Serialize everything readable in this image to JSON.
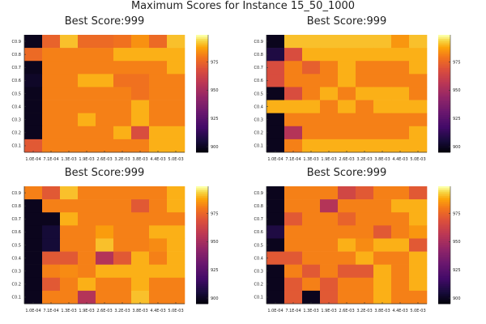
{
  "figure": {
    "suptitle": "Maximum Scores for Instance 15_50_1000"
  },
  "chart_data": {
    "type": "heatmap",
    "rows": [
      "C0.1",
      "C0.2",
      "C0.3",
      "C0.4",
      "C0.5",
      "C0.6",
      "C0.7",
      "C0.8",
      "C0.9"
    ],
    "x_tick_labels": [
      "1.0E-04",
      "7.1E-04",
      "1.3E-03",
      "1.9E-03",
      "2.6E-03",
      "3.2E-03",
      "3.8E-03",
      "4.4E-03",
      "5.0E-03"
    ],
    "colorbar": {
      "min": 895,
      "max": 999,
      "ticks": [
        900,
        925,
        950,
        975
      ],
      "colormap": "inferno"
    },
    "panels": [
      {
        "title": "Best Score:999",
        "grid_top_to_bottom": [
          [
            900,
            975,
            992,
            977,
            977,
            979,
            985,
            977,
            992
          ],
          [
            977,
            982,
            982,
            982,
            982,
            990,
            990,
            990,
            990
          ],
          [
            900,
            982,
            982,
            982,
            982,
            982,
            982,
            982,
            990
          ],
          [
            902,
            982,
            982,
            990,
            990,
            979,
            979,
            982,
            982
          ],
          [
            900,
            982,
            982,
            982,
            982,
            982,
            979,
            982,
            982
          ],
          [
            900,
            982,
            982,
            982,
            982,
            982,
            990,
            982,
            982
          ],
          [
            900,
            982,
            982,
            990,
            982,
            982,
            990,
            982,
            982
          ],
          [
            900,
            982,
            982,
            982,
            982,
            990,
            968,
            990,
            990
          ],
          [
            972,
            982,
            982,
            982,
            982,
            982,
            982,
            990,
            990
          ]
        ]
      },
      {
        "title": "Best Score:999",
        "grid_top_to_bottom": [
          [
            900,
            992,
            992,
            992,
            992,
            992,
            992,
            986,
            992
          ],
          [
            908,
            968,
            990,
            990,
            990,
            990,
            990,
            990,
            990
          ],
          [
            968,
            982,
            974,
            982,
            990,
            982,
            982,
            982,
            990
          ],
          [
            968,
            982,
            982,
            982,
            990,
            982,
            982,
            982,
            982
          ],
          [
            900,
            968,
            982,
            990,
            982,
            990,
            990,
            990,
            982
          ],
          [
            990,
            990,
            990,
            982,
            990,
            982,
            990,
            990,
            990
          ],
          [
            900,
            982,
            982,
            982,
            982,
            982,
            982,
            982,
            982
          ],
          [
            900,
            955,
            982,
            982,
            982,
            982,
            982,
            982,
            990
          ],
          [
            900,
            982,
            990,
            990,
            990,
            990,
            990,
            990,
            990
          ]
        ]
      },
      {
        "title": "Best Score:999",
        "grid_top_to_bottom": [
          [
            982,
            972,
            992,
            982,
            982,
            982,
            982,
            982,
            990
          ],
          [
            900,
            982,
            982,
            982,
            982,
            982,
            972,
            982,
            990
          ],
          [
            900,
            900,
            990,
            982,
            982,
            982,
            982,
            982,
            982
          ],
          [
            900,
            905,
            982,
            982,
            987,
            982,
            982,
            990,
            990
          ],
          [
            900,
            905,
            982,
            982,
            992,
            982,
            982,
            984,
            990
          ],
          [
            900,
            972,
            972,
            982,
            955,
            972,
            990,
            982,
            990
          ],
          [
            900,
            982,
            984,
            982,
            990,
            990,
            990,
            990,
            990
          ],
          [
            900,
            972,
            982,
            990,
            982,
            982,
            990,
            982,
            982
          ],
          [
            900,
            982,
            982,
            955,
            982,
            982,
            992,
            982,
            982
          ]
        ]
      },
      {
        "title": "Best Score:999",
        "grid_top_to_bottom": [
          [
            900,
            982,
            982,
            982,
            965,
            972,
            982,
            982,
            972
          ],
          [
            900,
            982,
            982,
            955,
            982,
            982,
            982,
            990,
            990
          ],
          [
            900,
            972,
            982,
            982,
            975,
            982,
            982,
            982,
            990
          ],
          [
            908,
            982,
            982,
            982,
            982,
            982,
            972,
            982,
            986
          ],
          [
            900,
            982,
            982,
            982,
            990,
            984,
            990,
            990,
            972
          ],
          [
            972,
            972,
            982,
            982,
            982,
            990,
            982,
            982,
            990
          ],
          [
            900,
            982,
            972,
            982,
            972,
            972,
            990,
            982,
            990
          ],
          [
            900,
            972,
            982,
            972,
            982,
            982,
            990,
            982,
            990
          ],
          [
            900,
            972,
            900,
            972,
            982,
            982,
            990,
            982,
            982
          ]
        ]
      }
    ]
  }
}
